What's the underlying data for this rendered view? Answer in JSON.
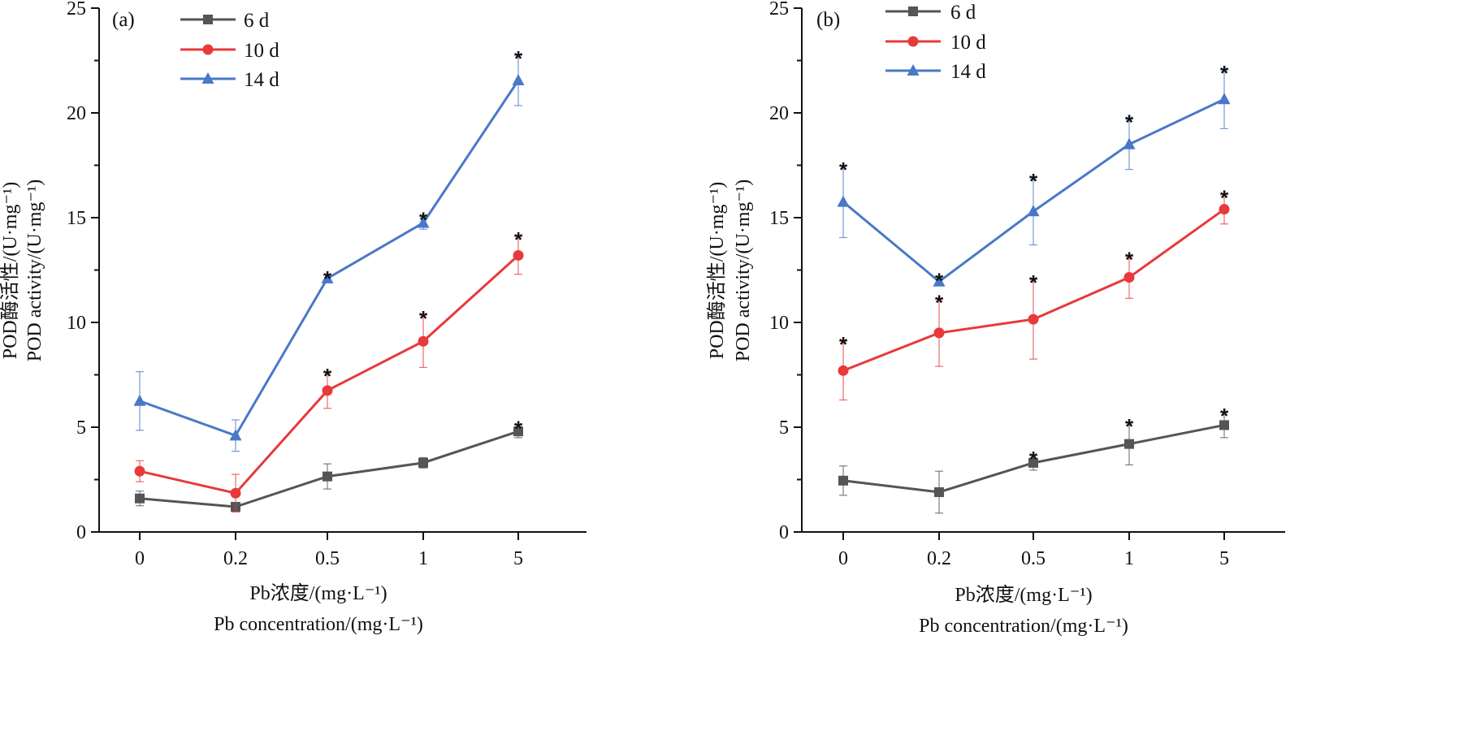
{
  "chart_data": [
    {
      "type": "line",
      "panel_label": "(a)",
      "categories": [
        "0",
        "0.2",
        "0.5",
        "1",
        "5"
      ],
      "ylabel_lines": [
        "POD酶活性/(U·mg⁻¹)",
        "POD activity/(U·mg⁻¹)"
      ],
      "xlabel_lines": [
        "Pb浓度/(mg·L⁻¹)",
        "Pb concentration/(mg·L⁻¹)"
      ],
      "ylim": [
        0,
        25
      ],
      "yticks": [
        0,
        5,
        10,
        15,
        20,
        25
      ],
      "legend_position": "top-left",
      "series": [
        {
          "name": "6 d",
          "color": "#555555",
          "marker": "square",
          "values": [
            1.6,
            1.2,
            2.65,
            3.3,
            4.8
          ],
          "errors": [
            0.35,
            0.2,
            0.6,
            0.25,
            0.3
          ],
          "significant": [
            false,
            false,
            false,
            false,
            true
          ]
        },
        {
          "name": "10 d",
          "color": "#e8393b",
          "marker": "circle",
          "values": [
            2.9,
            1.85,
            6.75,
            9.1,
            13.2
          ],
          "errors": [
            0.5,
            0.9,
            0.85,
            1.25,
            0.9
          ],
          "significant": [
            false,
            false,
            true,
            true,
            true
          ]
        },
        {
          "name": "14 d",
          "color": "#4a78c8",
          "marker": "triangle",
          "values": [
            6.25,
            4.6,
            12.1,
            14.75,
            21.55
          ],
          "errors": [
            1.4,
            0.75,
            0.15,
            0.3,
            1.2
          ],
          "significant": [
            false,
            false,
            true,
            true,
            true
          ]
        }
      ]
    },
    {
      "type": "line",
      "panel_label": "(b)",
      "categories": [
        "0",
        "0.2",
        "0.5",
        "1",
        "5"
      ],
      "ylabel_lines": [
        "POD酶活性/(U·mg⁻¹)",
        "POD activity/(U·mg⁻¹)"
      ],
      "xlabel_lines": [
        "Pb浓度/(mg·L⁻¹)",
        "Pb concentration/(mg·L⁻¹)"
      ],
      "ylim": [
        0,
        25
      ],
      "yticks": [
        0,
        5,
        10,
        15,
        20,
        25
      ],
      "legend_position": "top-left",
      "series": [
        {
          "name": "6 d",
          "color": "#555555",
          "marker": "square",
          "values": [
            2.45,
            1.9,
            3.3,
            4.2,
            5.1
          ],
          "errors": [
            0.7,
            1.0,
            0.35,
            1.0,
            0.6
          ],
          "significant": [
            false,
            false,
            true,
            true,
            true
          ]
        },
        {
          "name": "10 d",
          "color": "#e8393b",
          "marker": "circle",
          "values": [
            7.7,
            9.5,
            10.15,
            12.15,
            15.4
          ],
          "errors": [
            1.4,
            1.6,
            1.9,
            1.0,
            0.7
          ],
          "significant": [
            true,
            true,
            true,
            true,
            true
          ]
        },
        {
          "name": "14 d",
          "color": "#4a78c8",
          "marker": "triangle",
          "values": [
            15.75,
            11.95,
            15.3,
            18.5,
            20.65
          ],
          "errors": [
            1.7,
            0.2,
            1.6,
            1.2,
            1.4
          ],
          "significant": [
            true,
            true,
            true,
            true,
            true
          ]
        }
      ]
    }
  ]
}
